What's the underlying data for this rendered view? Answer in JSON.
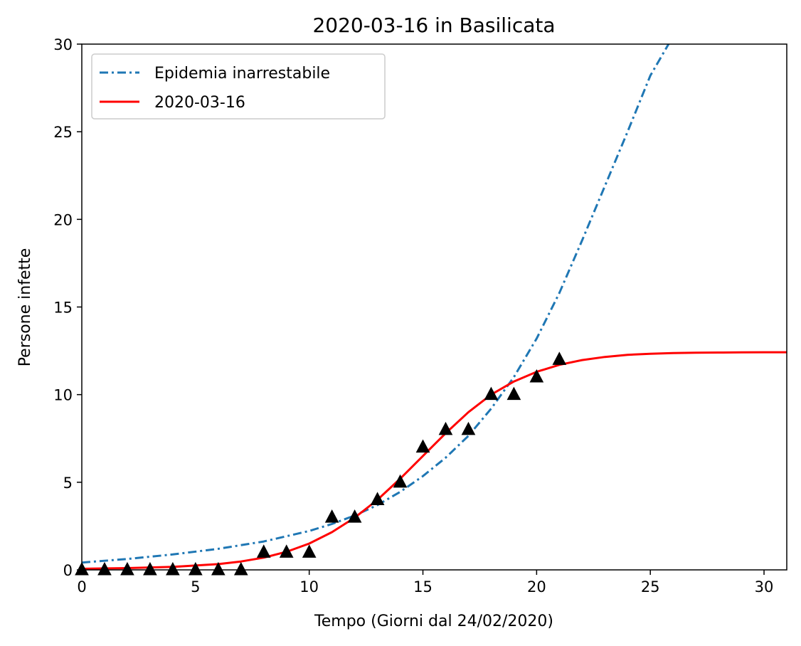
{
  "chart_data": {
    "type": "line",
    "title": "2020-03-16 in Basilicata",
    "xlabel": "Tempo (Giorni dal 24/02/2020)",
    "ylabel": "Persone infette",
    "xlim": [
      0,
      31
    ],
    "ylim": [
      0,
      30
    ],
    "x_ticks": [
      0,
      5,
      10,
      15,
      20,
      25,
      30
    ],
    "y_ticks": [
      0,
      5,
      10,
      15,
      20,
      25,
      30
    ],
    "grid": false,
    "legend_position": "top-left",
    "series": [
      {
        "name": "Epidemia inarrestabile",
        "style": "dash-dot",
        "color": "#1f77b4",
        "x": [
          0,
          2,
          4,
          6,
          8,
          10,
          11,
          12,
          13,
          14,
          15,
          16,
          17,
          18,
          19,
          20,
          21,
          22,
          23,
          24,
          25,
          25.8
        ],
        "y": [
          0.42,
          0.62,
          0.88,
          1.2,
          1.62,
          2.22,
          2.62,
          3.1,
          3.7,
          4.45,
          5.35,
          6.4,
          7.65,
          9.2,
          11.0,
          13.2,
          15.8,
          18.8,
          21.9,
          25.0,
          28.2,
          30.0
        ]
      },
      {
        "name": "2020-03-16",
        "style": "solid",
        "color": "#ff0000",
        "x": [
          0,
          2,
          4,
          6,
          7,
          8,
          9,
          10,
          11,
          12,
          13,
          14,
          15,
          16,
          17,
          18,
          19,
          20,
          21,
          22,
          23,
          24,
          25,
          26,
          27,
          28,
          29,
          30,
          31
        ],
        "y": [
          0.06,
          0.1,
          0.17,
          0.33,
          0.48,
          0.7,
          1.03,
          1.5,
          2.15,
          2.98,
          4.0,
          5.2,
          6.5,
          7.8,
          9.0,
          10.0,
          10.75,
          11.3,
          11.7,
          11.97,
          12.15,
          12.27,
          12.33,
          12.37,
          12.39,
          12.4,
          12.41,
          12.42,
          12.42
        ]
      },
      {
        "name": "",
        "type": "scatter",
        "marker": "triangle",
        "color": "#000000",
        "x": [
          0,
          1,
          2,
          3,
          4,
          5,
          6,
          7,
          8,
          9,
          10,
          11,
          12,
          13,
          14,
          15,
          16,
          17,
          18,
          19,
          20,
          21
        ],
        "y": [
          0,
          0,
          0,
          0,
          0,
          0,
          0,
          0,
          1,
          1,
          1,
          3,
          3,
          4,
          5,
          7,
          8,
          8,
          10,
          10,
          11,
          12
        ]
      }
    ]
  }
}
